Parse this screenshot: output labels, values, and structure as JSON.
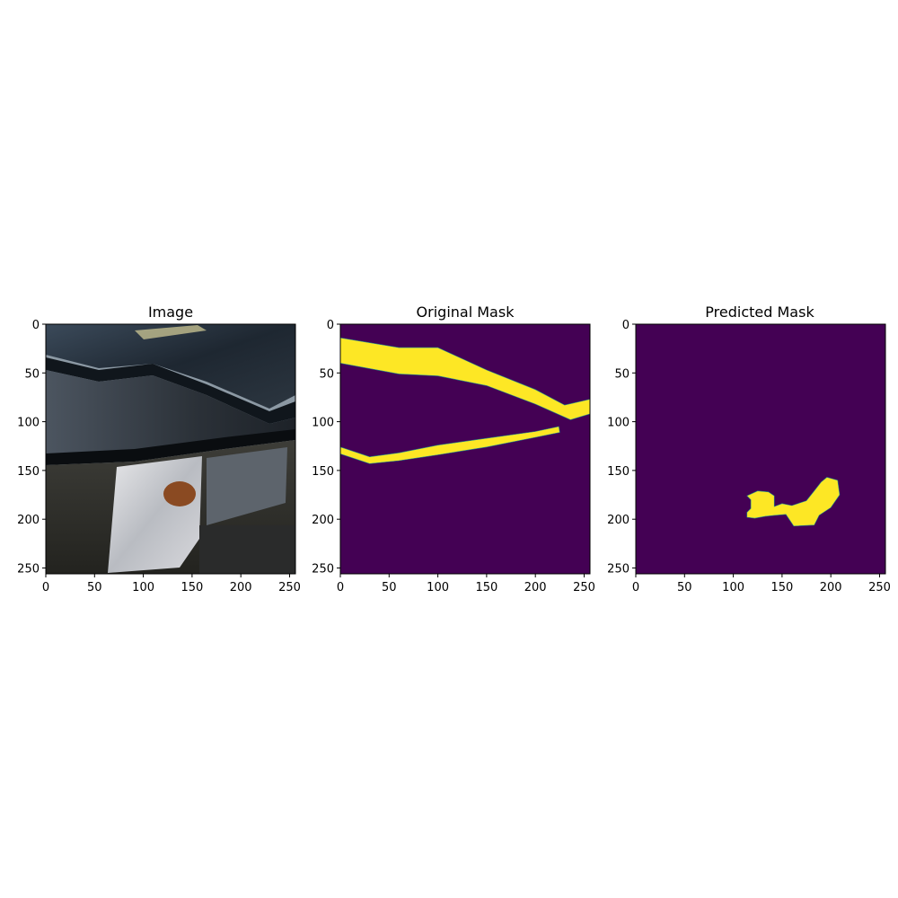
{
  "colors": {
    "background": "#440154",
    "foreground": "#fde725",
    "edge": "#21918c"
  },
  "chart_data": [
    {
      "type": "image",
      "title": "Image",
      "xlim": [
        0,
        256
      ],
      "ylim": [
        256,
        0
      ],
      "xticks": [
        0,
        50,
        100,
        150,
        200,
        250
      ],
      "yticks": [
        0,
        50,
        100,
        150,
        200,
        250
      ],
      "content": "photo"
    },
    {
      "type": "heatmap",
      "title": "Original Mask",
      "xlim": [
        0,
        256
      ],
      "ylim": [
        256,
        0
      ],
      "xticks": [
        0,
        50,
        100,
        150,
        200,
        250
      ],
      "yticks": [
        0,
        50,
        100,
        150,
        200,
        250
      ],
      "regions": [
        [
          [
            0,
            14
          ],
          [
            60,
            24
          ],
          [
            100,
            24
          ],
          [
            150,
            47
          ],
          [
            200,
            67
          ],
          [
            230,
            83
          ],
          [
            256,
            77
          ],
          [
            256,
            92
          ],
          [
            236,
            98
          ],
          [
            200,
            82
          ],
          [
            150,
            63
          ],
          [
            100,
            53
          ],
          [
            60,
            51
          ],
          [
            0,
            40
          ]
        ],
        [
          [
            0,
            126
          ],
          [
            30,
            136
          ],
          [
            60,
            132
          ],
          [
            100,
            124
          ],
          [
            150,
            117
          ],
          [
            200,
            110
          ],
          [
            224,
            105
          ],
          [
            225,
            111
          ],
          [
            200,
            116
          ],
          [
            150,
            126
          ],
          [
            100,
            134
          ],
          [
            60,
            140
          ],
          [
            30,
            143
          ],
          [
            0,
            133
          ]
        ]
      ]
    },
    {
      "type": "heatmap",
      "title": "Predicted Mask",
      "xlim": [
        0,
        256
      ],
      "ylim": [
        256,
        0
      ],
      "xticks": [
        0,
        50,
        100,
        150,
        200,
        250
      ],
      "yticks": [
        0,
        50,
        100,
        150,
        200,
        250
      ],
      "regions": [
        [
          [
            114,
            176
          ],
          [
            125,
            171
          ],
          [
            136,
            172
          ],
          [
            142,
            176
          ],
          [
            142,
            187
          ],
          [
            150,
            184
          ],
          [
            160,
            186
          ],
          [
            175,
            181
          ],
          [
            183,
            171
          ],
          [
            190,
            162
          ],
          [
            196,
            157
          ],
          [
            207,
            160
          ],
          [
            209,
            175
          ],
          [
            200,
            188
          ],
          [
            188,
            196
          ],
          [
            183,
            206
          ],
          [
            162,
            207
          ],
          [
            154,
            195
          ],
          [
            143,
            196
          ],
          [
            133,
            197
          ],
          [
            122,
            199
          ],
          [
            114,
            198
          ],
          [
            114,
            193
          ],
          [
            118,
            189
          ],
          [
            118,
            180
          ]
        ]
      ]
    }
  ]
}
